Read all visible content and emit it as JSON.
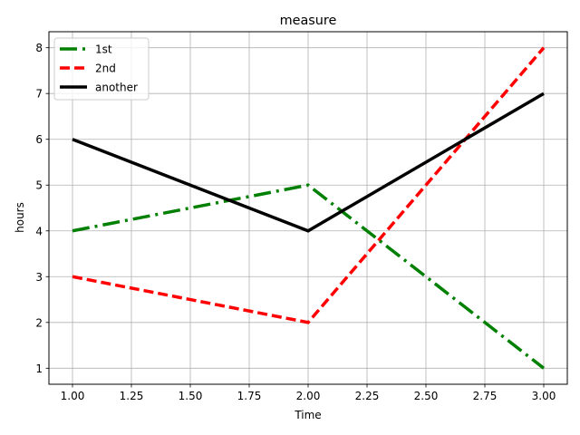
{
  "chart_data": {
    "type": "line",
    "title": "measure",
    "xlabel": "Time",
    "ylabel": "hours",
    "xlim": [
      0.9,
      3.1
    ],
    "ylim": [
      0.65,
      8.35
    ],
    "xticks": [
      1.0,
      1.25,
      1.5,
      1.75,
      2.0,
      2.25,
      2.5,
      2.75,
      3.0
    ],
    "xtick_labels": [
      "1.00",
      "1.25",
      "1.50",
      "1.75",
      "2.00",
      "2.25",
      "2.50",
      "2.75",
      "3.00"
    ],
    "yticks": [
      1,
      2,
      3,
      4,
      5,
      6,
      7,
      8
    ],
    "ytick_labels": [
      "1",
      "2",
      "3",
      "4",
      "5",
      "6",
      "7",
      "8"
    ],
    "grid": true,
    "legend": "upper-left",
    "series": [
      {
        "name": "1st",
        "x": [
          1,
          2,
          3
        ],
        "y": [
          4,
          5,
          1
        ],
        "color": "#008000",
        "style": "dashdot"
      },
      {
        "name": "2nd",
        "x": [
          1,
          2,
          3
        ],
        "y": [
          3,
          2,
          8
        ],
        "color": "#ff0000",
        "style": "dashed"
      },
      {
        "name": "another",
        "x": [
          1,
          2,
          3
        ],
        "y": [
          6,
          4,
          7
        ],
        "color": "#000000",
        "style": "solid"
      }
    ]
  }
}
